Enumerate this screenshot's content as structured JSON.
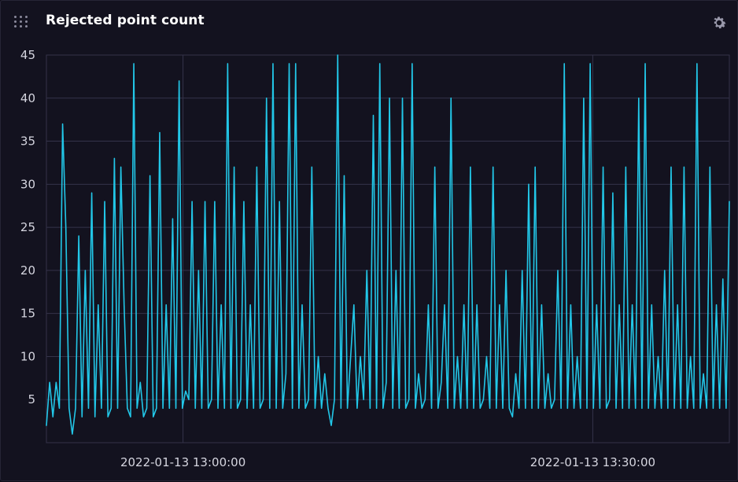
{
  "panel": {
    "title": "Rejected point count",
    "drag_icon": "grip-dots-icon",
    "settings_icon": "gear-icon"
  },
  "colors": {
    "background": "#13121f",
    "line": "#22c7e8",
    "grid": "#34334a",
    "text": "#d5d5df"
  },
  "chart_data": {
    "type": "line",
    "title": "Rejected point count",
    "xlabel": "",
    "ylabel": "",
    "ylim": [
      0,
      45
    ],
    "y_ticks": [
      5,
      10,
      15,
      20,
      25,
      30,
      35,
      40,
      45
    ],
    "y_tick_labels": [
      "5",
      "10",
      "15",
      "20",
      "25",
      "30",
      "35",
      "40",
      "45"
    ],
    "x_range": [
      "2022-01-13 12:50:00",
      "2022-01-13 13:40:00"
    ],
    "x_ticks": [
      "2022-01-13 13:00:00",
      "2022-01-13 13:30:00"
    ],
    "x_tick_labels": [
      "2022-01-13 13:00:00",
      "2022-01-13 13:30:00"
    ],
    "grid": true,
    "series": [
      {
        "values": [
          2,
          7,
          3,
          7,
          4,
          37,
          25,
          4,
          1,
          4,
          24,
          3,
          20,
          4,
          29,
          3,
          16,
          4,
          28,
          3,
          4,
          33,
          4,
          32,
          16,
          4,
          3,
          44,
          4,
          7,
          3,
          4,
          31,
          3,
          4,
          36,
          4,
          16,
          4,
          26,
          4,
          42,
          4,
          6,
          5,
          28,
          4,
          20,
          4,
          28,
          4,
          5,
          28,
          4,
          16,
          4,
          44,
          4,
          32,
          4,
          5,
          28,
          4,
          16,
          4,
          32,
          4,
          5,
          40,
          4,
          44,
          4,
          28,
          4,
          8,
          44,
          4,
          44,
          4,
          16,
          4,
          5,
          32,
          4,
          10,
          4,
          8,
          4,
          2,
          5,
          45,
          4,
          31,
          4,
          10,
          16,
          4,
          10,
          5,
          20,
          4,
          38,
          4,
          44,
          4,
          7,
          40,
          4,
          20,
          4,
          40,
          4,
          5,
          44,
          4,
          8,
          4,
          5,
          16,
          4,
          32,
          4,
          7,
          16,
          4,
          40,
          4,
          10,
          4,
          16,
          4,
          32,
          4,
          16,
          4,
          5,
          10,
          4,
          32,
          4,
          16,
          4,
          20,
          4,
          3,
          8,
          4,
          20,
          4,
          30,
          4,
          32,
          4,
          16,
          4,
          8,
          4,
          5,
          20,
          4,
          44,
          4,
          16,
          4,
          10,
          4,
          40,
          4,
          44,
          4,
          16,
          4,
          32,
          4,
          5,
          29,
          4,
          16,
          4,
          32,
          4,
          16,
          4,
          40,
          4,
          44,
          4,
          16,
          4,
          10,
          4,
          20,
          4,
          32,
          4,
          16,
          4,
          32,
          4,
          10,
          4,
          44,
          4,
          8,
          4,
          32,
          4,
          16,
          4,
          19,
          4,
          28
        ]
      }
    ]
  }
}
